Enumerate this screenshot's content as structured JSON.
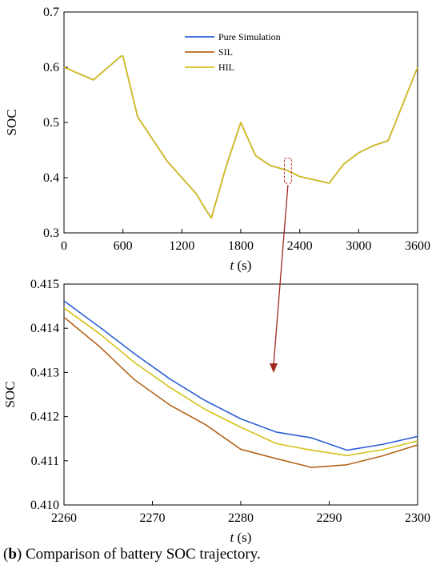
{
  "caption": {
    "label": "b",
    "text": "Comparison of battery SOC trajectory."
  },
  "colors": {
    "pure_simulation": "#2b5fd3",
    "sil": "#b5651d",
    "hil": "#d4c21a",
    "arrow": "#a0271e",
    "highlight_box": "#c0392b"
  },
  "chart_data": [
    {
      "type": "line",
      "xlabel": "t (s)",
      "ylabel": "SOC",
      "xlim": [
        0,
        3600
      ],
      "ylim": [
        0.3,
        0.7
      ],
      "xticks": [
        0,
        600,
        1200,
        1800,
        2400,
        3000,
        3600
      ],
      "yticks": [
        0.3,
        0.4,
        0.5,
        0.6,
        0.7
      ],
      "legend": {
        "placement": "top-center"
      },
      "series": [
        {
          "name": "Pure Simulation",
          "x": [
            0,
            300,
            580,
            600,
            750,
            900,
            1050,
            1200,
            1350,
            1440,
            1500,
            1650,
            1800,
            1950,
            2100,
            2260,
            2400,
            2550,
            2700,
            2850,
            3000,
            3150,
            3300,
            3600
          ],
          "y": [
            0.6,
            0.577,
            0.62,
            0.62,
            0.51,
            0.47,
            0.43,
            0.4,
            0.37,
            0.343,
            0.327,
            0.42,
            0.5,
            0.44,
            0.422,
            0.414,
            0.402,
            0.396,
            0.39,
            0.425,
            0.445,
            0.458,
            0.467,
            0.6
          ]
        },
        {
          "name": "SIL",
          "x": [
            0,
            300,
            580,
            600,
            750,
            900,
            1050,
            1200,
            1350,
            1440,
            1500,
            1650,
            1800,
            1950,
            2100,
            2260,
            2400,
            2550,
            2700,
            2850,
            3000,
            3150,
            3300,
            3600
          ],
          "y": [
            0.6,
            0.577,
            0.62,
            0.62,
            0.51,
            0.47,
            0.43,
            0.4,
            0.37,
            0.343,
            0.327,
            0.42,
            0.5,
            0.44,
            0.422,
            0.414,
            0.402,
            0.396,
            0.39,
            0.425,
            0.445,
            0.458,
            0.467,
            0.6
          ]
        },
        {
          "name": "HIL",
          "x": [
            0,
            300,
            580,
            600,
            750,
            900,
            1050,
            1200,
            1350,
            1440,
            1500,
            1650,
            1800,
            1950,
            2100,
            2260,
            2400,
            2550,
            2700,
            2850,
            3000,
            3150,
            3300,
            3600
          ],
          "y": [
            0.6,
            0.577,
            0.62,
            0.62,
            0.51,
            0.47,
            0.43,
            0.4,
            0.37,
            0.343,
            0.327,
            0.42,
            0.5,
            0.44,
            0.422,
            0.414,
            0.402,
            0.396,
            0.39,
            0.425,
            0.445,
            0.458,
            0.467,
            0.6
          ]
        }
      ],
      "annotations": [
        {
          "type": "zoom-box",
          "x_range": [
            2260,
            2300
          ],
          "y_range": [
            0.39,
            0.435
          ]
        }
      ]
    },
    {
      "type": "line",
      "xlabel": "t (s)",
      "ylabel": "SOC",
      "xlim": [
        2260,
        2300
      ],
      "ylim": [
        0.41,
        0.415
      ],
      "xticks": [
        2260,
        2270,
        2280,
        2290,
        2300
      ],
      "yticks": [
        0.41,
        0.411,
        0.412,
        0.413,
        0.414,
        0.415
      ],
      "series": [
        {
          "name": "Pure Simulation",
          "x": [
            2260,
            2264,
            2268,
            2272,
            2276,
            2280,
            2284,
            2288,
            2292,
            2296,
            2300
          ],
          "y": [
            0.41462,
            0.41403,
            0.41342,
            0.41285,
            0.41236,
            0.41195,
            0.41165,
            0.41152,
            0.41124,
            0.41137,
            0.41155
          ]
        },
        {
          "name": "SIL",
          "x": [
            2260,
            2264,
            2268,
            2272,
            2276,
            2280,
            2284,
            2288,
            2292,
            2296,
            2300
          ],
          "y": [
            0.41425,
            0.41359,
            0.41283,
            0.41226,
            0.41182,
            0.41126,
            0.41105,
            0.41085,
            0.41091,
            0.41111,
            0.41136
          ]
        },
        {
          "name": "HIL",
          "x": [
            2260,
            2264,
            2268,
            2272,
            2276,
            2280,
            2284,
            2288,
            2292,
            2296,
            2300
          ],
          "y": [
            0.41446,
            0.41388,
            0.41322,
            0.41266,
            0.41216,
            0.41176,
            0.41139,
            0.41124,
            0.41112,
            0.41125,
            0.41145
          ]
        }
      ]
    }
  ]
}
